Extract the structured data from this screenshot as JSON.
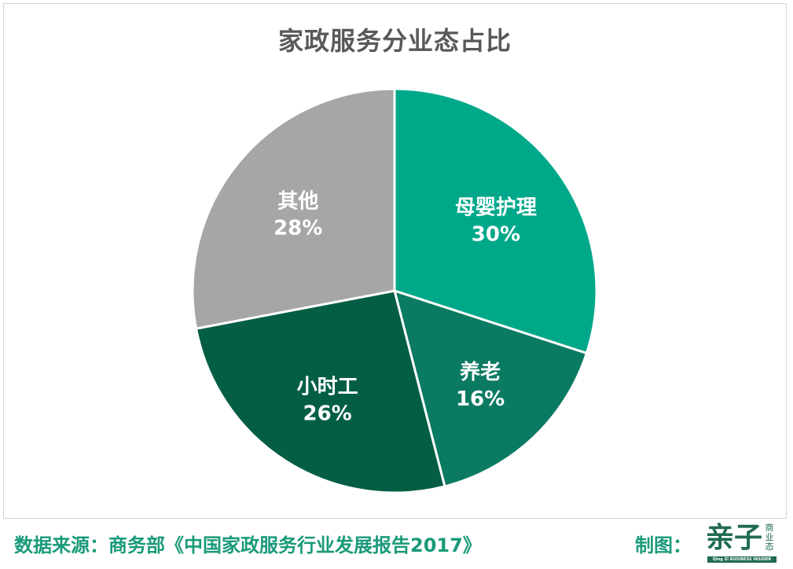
{
  "chart_data": {
    "type": "pie",
    "title": "家政服务分业态占比",
    "slices": [
      {
        "label": "母婴护理",
        "value": 30,
        "display": "30%",
        "color": "#00a88a"
      },
      {
        "label": "养老",
        "value": 16,
        "display": "16%",
        "color": "#0b7a62"
      },
      {
        "label": "小时工",
        "value": 26,
        "display": "26%",
        "color": "#045e45"
      },
      {
        "label": "其他",
        "value": 28,
        "display": "28%",
        "color": "#a6a6a6"
      }
    ]
  },
  "footer": {
    "source": "数据来源：商务部《中国家政服务行业发展报告2017》",
    "credit": "制图："
  },
  "logo": {
    "main": "亲子",
    "side": "商业态",
    "tagline": "Qing Zi BUSINESS INSIDER"
  }
}
